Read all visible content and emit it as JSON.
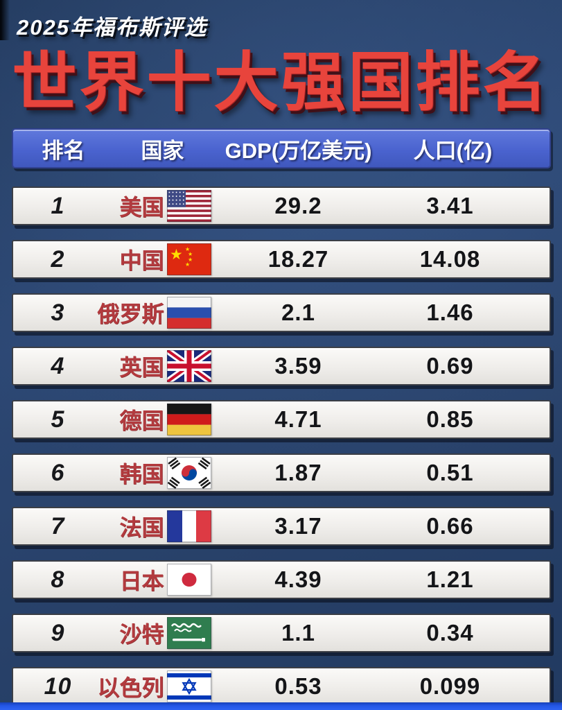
{
  "page": {
    "tagline": "2025年福布斯评选",
    "title": "世界十大强国排名"
  },
  "colors": {
    "background_navy": "#284169",
    "header_blue": "#4a63cf",
    "title_red": "#e8443c",
    "country_red": "#b23a3e",
    "card_bg": "#efedea",
    "number_black": "#141518",
    "strip_blue": "#2457e6",
    "header_text_white": "#ffffff"
  },
  "chart_data": {
    "type": "table",
    "title": "世界十大强国排名",
    "subtitle": "2025年福布斯评选",
    "columns": {
      "rank": "排名",
      "country": "国家",
      "gdp": "GDP(万亿美元)",
      "population": "人口(亿)"
    },
    "rows": [
      {
        "rank": "1",
        "country": "美国",
        "flag": "usa",
        "gdp": "29.2",
        "population": "3.41"
      },
      {
        "rank": "2",
        "country": "中国",
        "flag": "china",
        "gdp": "18.27",
        "population": "14.08"
      },
      {
        "rank": "3",
        "country": "俄罗斯",
        "flag": "russia",
        "gdp": "2.1",
        "population": "1.46"
      },
      {
        "rank": "4",
        "country": "英国",
        "flag": "uk",
        "gdp": "3.59",
        "population": "0.69"
      },
      {
        "rank": "5",
        "country": "德国",
        "flag": "germany",
        "gdp": "4.71",
        "population": "0.85"
      },
      {
        "rank": "6",
        "country": "韩国",
        "flag": "south-korea",
        "gdp": "1.87",
        "population": "0.51"
      },
      {
        "rank": "7",
        "country": "法国",
        "flag": "france",
        "gdp": "3.17",
        "population": "0.66"
      },
      {
        "rank": "8",
        "country": "日本",
        "flag": "japan",
        "gdp": "4.39",
        "population": "1.21"
      },
      {
        "rank": "9",
        "country": "沙特",
        "flag": "saudi-arabia",
        "gdp": "1.1",
        "population": "0.34"
      },
      {
        "rank": "10",
        "country": "以色列",
        "flag": "israel",
        "gdp": "0.53",
        "population": "0.099"
      }
    ]
  }
}
